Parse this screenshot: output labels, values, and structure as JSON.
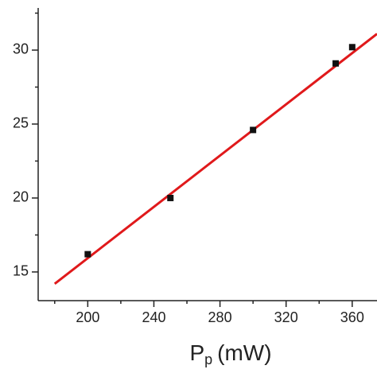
{
  "chart_data": {
    "type": "scatter",
    "x_label": {
      "main": "P",
      "sub": "p",
      "rest": "(mW)"
    },
    "series": [
      {
        "kind": "points",
        "color": "#111111",
        "x": [
          200,
          250,
          300,
          350,
          360
        ],
        "values": [
          16.2,
          20.0,
          24.6,
          29.1,
          30.2
        ]
      },
      {
        "kind": "line",
        "color": "#e0191b",
        "x": [
          180,
          375
        ],
        "values": [
          14.2,
          31.1
        ]
      }
    ],
    "xlim": [
      170,
      375
    ],
    "ylim": [
      13.06,
      32.85
    ],
    "xticks": [
      200,
      240,
      280,
      320,
      360
    ],
    "yticks": [
      15,
      20,
      25,
      30
    ],
    "xticks_minor": [
      180,
      220,
      260,
      300,
      340
    ],
    "yticks_minor": [
      17.5,
      22.5,
      27.5,
      32.5
    ]
  }
}
